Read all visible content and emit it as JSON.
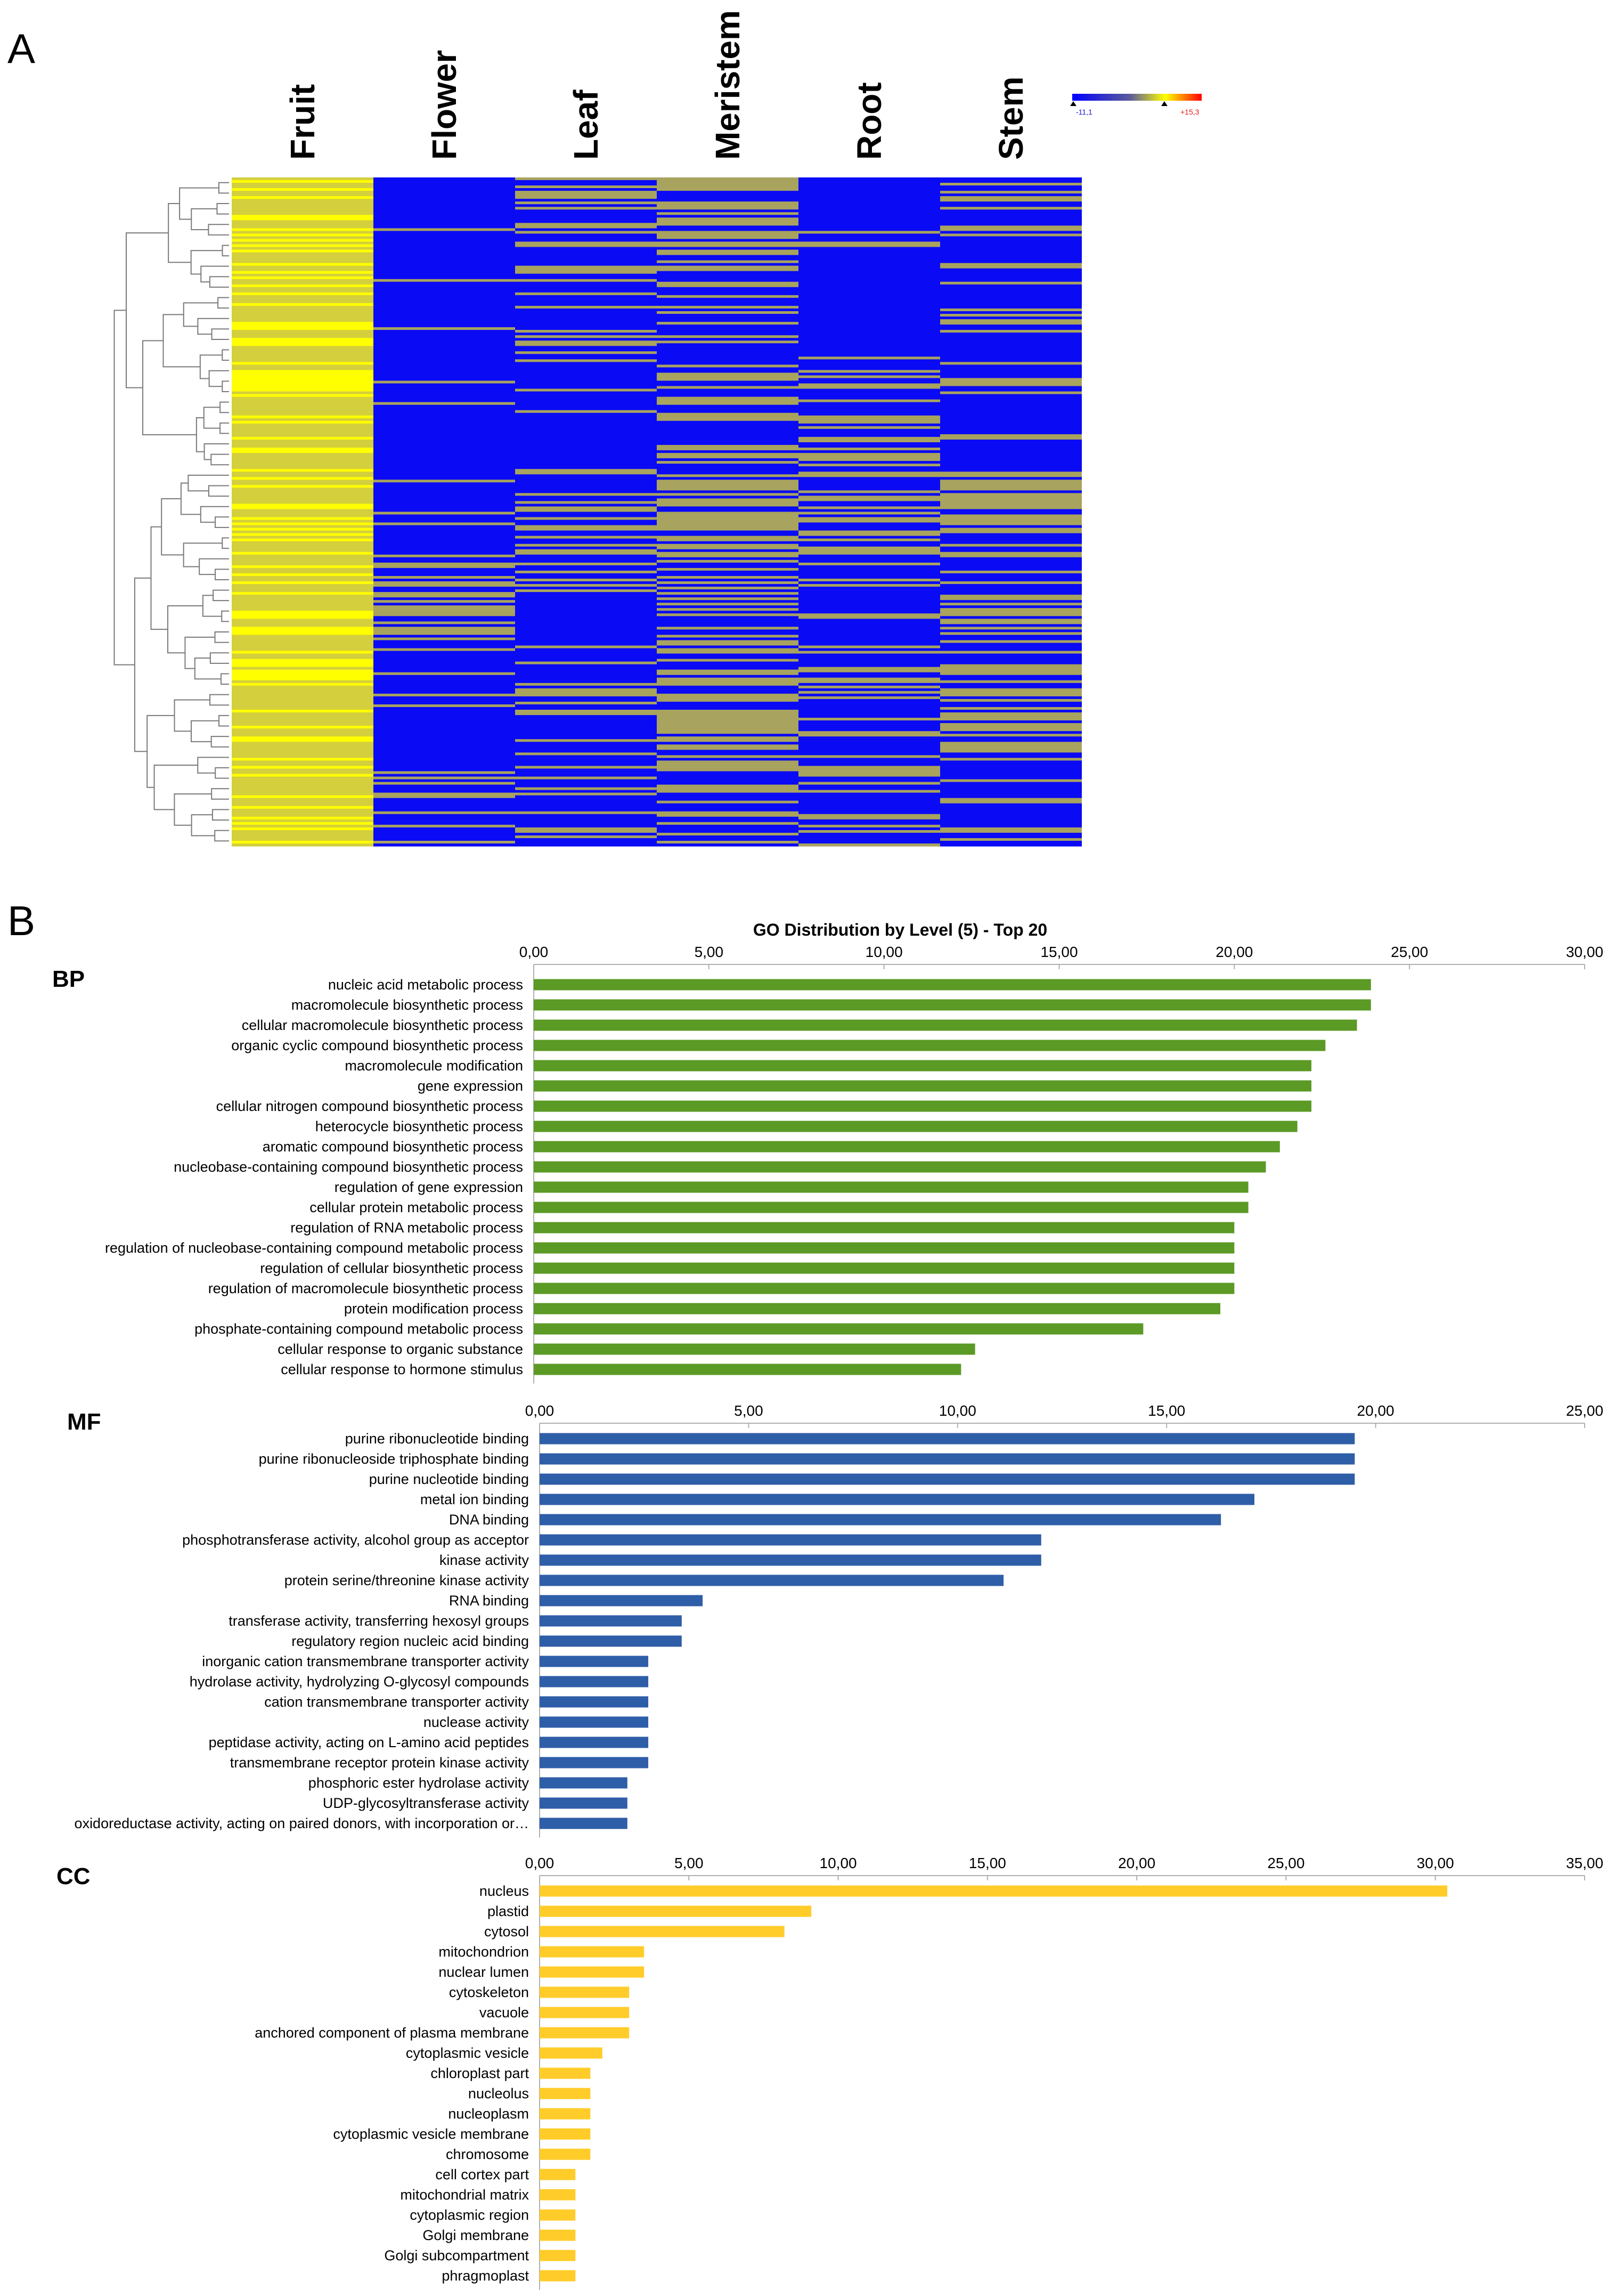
{
  "panels": {
    "a": "A",
    "b": "B"
  },
  "heatmap": {
    "tissues": [
      "Fruit",
      "Flower",
      "Leaf",
      "Meristem",
      "Root",
      "Stem"
    ],
    "legend": {
      "min_label": "-11,1",
      "max_label": "+15,3",
      "colors": [
        "#0000ff",
        "#ffff00",
        "#ff0000"
      ]
    }
  },
  "colors": {
    "bp": "#5b9a25",
    "mf": "#2f5ea8",
    "cc": "#ffcc29",
    "heat_low": "#0a0af5",
    "heat_high": "#ffff00",
    "heat_mid": "#a8a35e"
  },
  "chart_data": [
    {
      "type": "bar",
      "panel": "BP",
      "title": "GO Distribution by Level (5) - Top 20",
      "orientation": "horizontal",
      "xlim": [
        0,
        30
      ],
      "tick_labels": [
        "0,00",
        "5,00",
        "10,00",
        "15,00",
        "20,00",
        "25,00",
        "30,00"
      ],
      "categories": [
        "nucleic acid metabolic process",
        "macromolecule biosynthetic process",
        "cellular macromolecule biosynthetic process",
        "organic cyclic compound biosynthetic process",
        "macromolecule modification",
        "gene expression",
        "cellular nitrogen compound biosynthetic process",
        "heterocycle biosynthetic process",
        "aromatic compound biosynthetic process",
        "nucleobase-containing compound biosynthetic process",
        "regulation of gene expression",
        "cellular protein metabolic process",
        "regulation of RNA metabolic process",
        "regulation of nucleobase-containing compound metabolic process",
        "regulation of cellular biosynthetic process",
        "regulation of macromolecule biosynthetic process",
        "protein modification process",
        "phosphate-containing compound metabolic process",
        "cellular response to organic substance",
        "cellular response to hormone stimulus"
      ],
      "values": [
        23.9,
        23.9,
        23.5,
        22.6,
        22.2,
        22.2,
        22.2,
        21.8,
        21.3,
        20.9,
        20.4,
        20.4,
        20.0,
        20.0,
        20.0,
        20.0,
        19.6,
        17.4,
        12.6,
        12.2
      ]
    },
    {
      "type": "bar",
      "panel": "MF",
      "orientation": "horizontal",
      "xlim": [
        0,
        25
      ],
      "tick_labels": [
        "0,00",
        "5,00",
        "10,00",
        "15,00",
        "20,00",
        "25,00"
      ],
      "categories": [
        "purine ribonucleotide binding",
        "purine ribonucleoside triphosphate binding",
        "purine nucleotide binding",
        "metal ion binding",
        "DNA binding",
        "phosphotransferase activity, alcohol group as acceptor",
        "kinase activity",
        "protein serine/threonine kinase activity",
        "RNA binding",
        "transferase activity, transferring hexosyl groups",
        "regulatory region nucleic acid binding",
        "inorganic cation transmembrane transporter activity",
        "hydrolase activity, hydrolyzing O-glycosyl compounds",
        "cation transmembrane transporter activity",
        "nuclease activity",
        "peptidase activity, acting on L-amino acid peptides",
        "transmembrane receptor protein kinase activity",
        "phosphoric ester hydrolase activity",
        "UDP-glycosyltransferase activity",
        "oxidoreductase activity, acting on paired donors, with incorporation or…"
      ],
      "values": [
        19.5,
        19.5,
        19.5,
        17.1,
        16.3,
        12.0,
        12.0,
        11.1,
        3.9,
        3.4,
        3.4,
        2.6,
        2.6,
        2.6,
        2.6,
        2.6,
        2.6,
        2.1,
        2.1,
        2.1
      ]
    },
    {
      "type": "bar",
      "panel": "CC",
      "orientation": "horizontal",
      "xlim": [
        0,
        35
      ],
      "tick_labels": [
        "0,00",
        "5,00",
        "10,00",
        "15,00",
        "20,00",
        "25,00",
        "30,00",
        "35,00"
      ],
      "categories": [
        "nucleus",
        "plastid",
        "cytosol",
        "mitochondrion",
        "nuclear lumen",
        "cytoskeleton",
        "vacuole",
        "anchored component of plasma membrane",
        "cytoplasmic vesicle",
        "chloroplast part",
        "nucleolus",
        "nucleoplasm",
        "cytoplasmic vesicle membrane",
        "chromosome",
        "cell cortex part",
        "mitochondrial matrix",
        "cytoplasmic region",
        "Golgi membrane",
        "Golgi subcompartment",
        "phragmoplast"
      ],
      "values": [
        30.4,
        9.1,
        8.2,
        3.5,
        3.5,
        3.0,
        3.0,
        3.0,
        2.1,
        1.7,
        1.7,
        1.7,
        1.7,
        1.7,
        1.2,
        1.2,
        1.2,
        1.2,
        1.2,
        1.2
      ]
    }
  ]
}
